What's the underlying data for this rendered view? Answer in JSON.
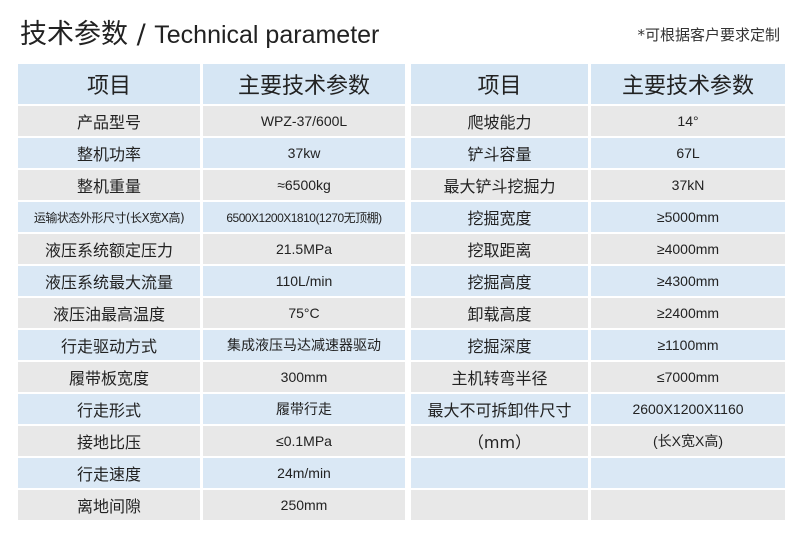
{
  "header": {
    "title_cn": "技术参数",
    "title_sep": " / ",
    "title_en": "Technical parameter",
    "note": "*可根据客户要求定制"
  },
  "colors": {
    "header_bg": "#d6e6f4",
    "row_blue": "#dae8f5",
    "row_gray": "#e8e8e8"
  },
  "left_table": {
    "headers": [
      "项目",
      "主要技术参数"
    ],
    "rows": [
      [
        "产品型号",
        "WPZ-37/600L"
      ],
      [
        "整机功率",
        "37kw"
      ],
      [
        "整机重量",
        "≈6500kg"
      ],
      [
        "运输状态外形尺寸(长X宽X高)",
        "6500X1200X1810(1270无顶棚)"
      ],
      [
        "液压系统额定压力",
        "21.5MPa"
      ],
      [
        "液压系统最大流量",
        "110L/min"
      ],
      [
        "液压油最高温度",
        "75°C"
      ],
      [
        "行走驱动方式",
        "集成液压马达减速器驱动"
      ],
      [
        "履带板宽度",
        "300mm"
      ],
      [
        "行走形式",
        "履带行走"
      ],
      [
        "接地比压",
        "≤0.1MPa"
      ],
      [
        "行走速度",
        "24m/min"
      ],
      [
        "离地间隙",
        "250mm"
      ]
    ]
  },
  "right_table": {
    "headers": [
      "项目",
      "主要技术参数"
    ],
    "rows": [
      [
        "爬坡能力",
        "14°"
      ],
      [
        "铲斗容量",
        "67L"
      ],
      [
        "最大铲斗挖掘力",
        "37kN"
      ],
      [
        "挖掘宽度",
        "≥5000mm"
      ],
      [
        "挖取距离",
        "≥4000mm"
      ],
      [
        "挖掘高度",
        "≥4300mm"
      ],
      [
        "卸载高度",
        "≥2400mm"
      ],
      [
        "挖掘深度",
        "≥1100mm"
      ],
      [
        "主机转弯半径",
        "≤7000mm"
      ],
      [
        "最大不可拆卸件尺寸",
        "2600X1200X1160"
      ],
      [
        "（mm）",
        "(长X宽X高)"
      ],
      [
        "",
        ""
      ],
      [
        "",
        ""
      ]
    ]
  }
}
